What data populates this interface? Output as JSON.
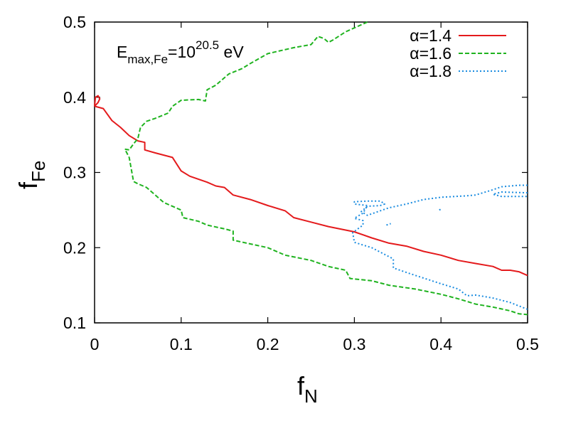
{
  "chart_data": {
    "type": "line",
    "title": "",
    "xlabel": {
      "main": "f",
      "sub": "N"
    },
    "ylabel": {
      "main": "f",
      "sub": "Fe"
    },
    "xlim": [
      0,
      0.5
    ],
    "ylim": [
      0.1,
      0.5
    ],
    "x_ticks": [
      0,
      0.1,
      0.2,
      0.3,
      0.4,
      0.5
    ],
    "x_tick_labels": [
      "0",
      "0.1",
      "0.2",
      "0.3",
      "0.4",
      "0.5"
    ],
    "y_ticks": [
      0.1,
      0.2,
      0.3,
      0.4,
      0.5
    ],
    "y_tick_labels": [
      "0.1",
      "0.2",
      "0.3",
      "0.4",
      "0.5"
    ],
    "grid": false,
    "legend_position": "top-right",
    "annotation": {
      "base": "E",
      "base_sub": "max,Fe",
      "mid": "=10",
      "sup": "20.5",
      "tail": " eV"
    },
    "series": [
      {
        "name": "α=1.4",
        "color": "#e41a1c",
        "dash": "solid",
        "segments": [
          [
            [
              0.0,
              0.388
            ],
            [
              0.001,
              0.4
            ],
            [
              0.004,
              0.402
            ],
            [
              0.006,
              0.398
            ],
            [
              0.004,
              0.393
            ],
            [
              0.0,
              0.388
            ]
          ],
          [
            [
              0.0,
              0.388
            ],
            [
              0.01,
              0.385
            ],
            [
              0.02,
              0.369
            ],
            [
              0.03,
              0.36
            ],
            [
              0.04,
              0.349
            ],
            [
              0.05,
              0.342
            ],
            [
              0.058,
              0.34
            ],
            [
              0.058,
              0.33
            ],
            [
              0.07,
              0.326
            ],
            [
              0.09,
              0.32
            ],
            [
              0.1,
              0.302
            ],
            [
              0.11,
              0.295
            ],
            [
              0.13,
              0.287
            ],
            [
              0.14,
              0.282
            ],
            [
              0.15,
              0.28
            ],
            [
              0.16,
              0.27
            ],
            [
              0.18,
              0.264
            ],
            [
              0.2,
              0.256
            ],
            [
              0.22,
              0.249
            ],
            [
              0.23,
              0.24
            ],
            [
              0.25,
              0.234
            ],
            [
              0.27,
              0.228
            ],
            [
              0.3,
              0.221
            ],
            [
              0.32,
              0.213
            ],
            [
              0.34,
              0.206
            ],
            [
              0.36,
              0.202
            ],
            [
              0.38,
              0.195
            ],
            [
              0.4,
              0.19
            ],
            [
              0.42,
              0.183
            ],
            [
              0.44,
              0.179
            ],
            [
              0.46,
              0.175
            ],
            [
              0.47,
              0.17
            ],
            [
              0.48,
              0.17
            ],
            [
              0.49,
              0.168
            ],
            [
              0.5,
              0.163
            ]
          ]
        ]
      },
      {
        "name": "α=1.6",
        "color": "#1fb31f",
        "dash": "dashed",
        "segments": [
          [
            [
              0.315,
              0.5
            ],
            [
              0.29,
              0.487
            ],
            [
              0.275,
              0.476
            ],
            [
              0.27,
              0.473
            ],
            [
              0.265,
              0.478
            ],
            [
              0.258,
              0.481
            ],
            [
              0.25,
              0.47
            ],
            [
              0.23,
              0.466
            ],
            [
              0.2,
              0.458
            ],
            [
              0.18,
              0.445
            ],
            [
              0.17,
              0.438
            ],
            [
              0.155,
              0.431
            ],
            [
              0.14,
              0.416
            ],
            [
              0.13,
              0.41
            ],
            [
              0.128,
              0.395
            ],
            [
              0.12,
              0.397
            ],
            [
              0.1,
              0.396
            ],
            [
              0.09,
              0.388
            ],
            [
              0.085,
              0.379
            ],
            [
              0.07,
              0.372
            ],
            [
              0.06,
              0.368
            ],
            [
              0.053,
              0.36
            ],
            [
              0.05,
              0.345
            ],
            [
              0.045,
              0.338
            ],
            [
              0.04,
              0.33
            ],
            [
              0.035,
              0.331
            ],
            [
              0.04,
              0.32
            ],
            [
              0.045,
              0.288
            ],
            [
              0.05,
              0.285
            ],
            [
              0.06,
              0.28
            ],
            [
              0.07,
              0.27
            ],
            [
              0.08,
              0.26
            ],
            [
              0.09,
              0.255
            ],
            [
              0.1,
              0.25
            ],
            [
              0.102,
              0.24
            ],
            [
              0.12,
              0.235
            ],
            [
              0.13,
              0.23
            ],
            [
              0.15,
              0.225
            ],
            [
              0.16,
              0.222
            ],
            [
              0.16,
              0.21
            ],
            [
              0.18,
              0.205
            ],
            [
              0.2,
              0.2
            ],
            [
              0.22,
              0.19
            ],
            [
              0.25,
              0.183
            ],
            [
              0.27,
              0.175
            ],
            [
              0.29,
              0.17
            ],
            [
              0.295,
              0.159
            ],
            [
              0.32,
              0.156
            ],
            [
              0.34,
              0.15
            ],
            [
              0.37,
              0.145
            ],
            [
              0.4,
              0.138
            ],
            [
              0.42,
              0.132
            ],
            [
              0.44,
              0.125
            ],
            [
              0.46,
              0.121
            ],
            [
              0.48,
              0.116
            ],
            [
              0.49,
              0.112
            ],
            [
              0.5,
              0.111
            ]
          ]
        ]
      },
      {
        "name": "α=1.8",
        "color": "#1a8ce0",
        "dash": "dotted",
        "segments": [
          [
            [
              0.5,
              0.118
            ],
            [
              0.48,
              0.127
            ],
            [
              0.46,
              0.133
            ],
            [
              0.44,
              0.137
            ],
            [
              0.43,
              0.136
            ],
            [
              0.42,
              0.145
            ],
            [
              0.4,
              0.152
            ],
            [
              0.36,
              0.167
            ],
            [
              0.345,
              0.173
            ],
            [
              0.345,
              0.185
            ],
            [
              0.32,
              0.2
            ],
            [
              0.3,
              0.207
            ],
            [
              0.298,
              0.22
            ],
            [
              0.31,
              0.23
            ],
            [
              0.31,
              0.236
            ],
            [
              0.3,
              0.239
            ],
            [
              0.31,
              0.246
            ],
            [
              0.315,
              0.256
            ],
            [
              0.3,
              0.258
            ],
            [
              0.3,
              0.261
            ],
            [
              0.315,
              0.262
            ],
            [
              0.33,
              0.262
            ],
            [
              0.335,
              0.258
            ],
            [
              0.33,
              0.256
            ],
            [
              0.315,
              0.255
            ],
            [
              0.308,
              0.248
            ],
            [
              0.315,
              0.243
            ],
            [
              0.33,
              0.249
            ],
            [
              0.34,
              0.253
            ],
            [
              0.36,
              0.258
            ],
            [
              0.38,
              0.264
            ],
            [
              0.4,
              0.267
            ],
            [
              0.43,
              0.269
            ],
            [
              0.44,
              0.27
            ],
            [
              0.46,
              0.277
            ],
            [
              0.47,
              0.281
            ],
            [
              0.49,
              0.283
            ],
            [
              0.5,
              0.283
            ]
          ],
          [
            [
              0.337,
              0.23
            ],
            [
              0.342,
              0.232
            ]
          ],
          [
            [
              0.398,
              0.25
            ],
            [
              0.401,
              0.252
            ]
          ],
          [
            [
              0.5,
              0.273
            ],
            [
              0.47,
              0.274
            ],
            [
              0.46,
              0.271
            ],
            [
              0.47,
              0.268
            ],
            [
              0.5,
              0.268
            ]
          ]
        ]
      }
    ]
  }
}
